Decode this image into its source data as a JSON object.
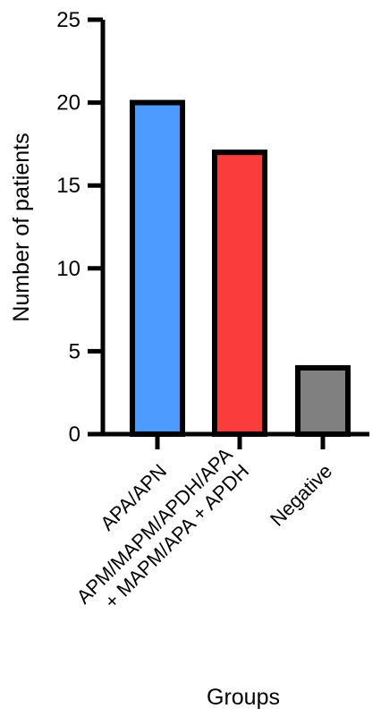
{
  "chart_data": {
    "type": "bar",
    "title": "",
    "xlabel": "Groups",
    "ylabel": "Number of patients",
    "ylim": [
      0,
      25
    ],
    "yticks": [
      0,
      5,
      10,
      15,
      20,
      25
    ],
    "grid": false,
    "categories": [
      [
        "APA/APN"
      ],
      [
        "APM/MAPM/APDH/APA",
        "+ MAPM/APA + APDH"
      ],
      [
        "Negative"
      ]
    ],
    "values": [
      20,
      17,
      4
    ],
    "colors": [
      "#4d9bff",
      "#fb3c3c",
      "#808080"
    ],
    "outline_color": "#000000"
  }
}
